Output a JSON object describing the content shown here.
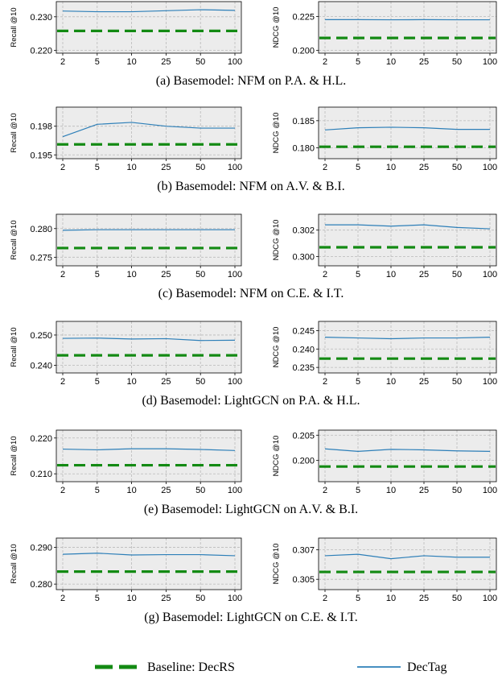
{
  "chart_data": [
    {
      "type": "line",
      "caption": "(a) Basemodel: NFM on P.A. & H.L.",
      "panels": [
        {
          "ylabel": "Recall @10",
          "yticks": [
            "0.220",
            "0.230"
          ],
          "ytick_values": [
            0.22,
            0.23
          ],
          "ylim": [
            0.2192,
            0.2345
          ],
          "categories": [
            "2",
            "5",
            "10",
            "25",
            "50",
            "100"
          ],
          "series": [
            {
              "name": "DecTag",
              "values": [
                0.2317,
                0.2315,
                0.2315,
                0.2318,
                0.2321,
                0.2319
              ]
            },
            {
              "name": "Baseline: DecRS",
              "values": [
                0.2258,
                0.2258,
                0.2258,
                0.2258,
                0.2258,
                0.2258
              ]
            }
          ]
        },
        {
          "ylabel": "NDCG @10",
          "yticks": [
            "0.200",
            "0.225"
          ],
          "ytick_values": [
            0.2,
            0.225
          ],
          "ylim": [
            0.198,
            0.236
          ],
          "categories": [
            "2",
            "5",
            "10",
            "25",
            "50",
            "100"
          ],
          "series": [
            {
              "name": "DecTag",
              "values": [
                0.2227,
                0.2227,
                0.2226,
                0.2227,
                0.2226,
                0.2226
              ]
            },
            {
              "name": "Baseline: DecRS",
              "values": [
                0.2092,
                0.2092,
                0.2092,
                0.2092,
                0.2092,
                0.2092
              ]
            }
          ]
        }
      ]
    },
    {
      "type": "line",
      "caption": "(b) Basemodel: NFM on A.V. & B.I.",
      "panels": [
        {
          "ylabel": "Recall @10",
          "yticks": [
            "0.195",
            "0.198"
          ],
          "ytick_values": [
            0.195,
            0.198
          ],
          "ylim": [
            0.1946,
            0.2
          ],
          "categories": [
            "2",
            "5",
            "10",
            "25",
            "50",
            "100"
          ],
          "series": [
            {
              "name": "DecTag",
              "values": [
                0.1969,
                0.1982,
                0.1984,
                0.198,
                0.1978,
                0.1978
              ]
            },
            {
              "name": "Baseline: DecRS",
              "values": [
                0.1961,
                0.1961,
                0.1961,
                0.1961,
                0.1961,
                0.1961
              ]
            }
          ]
        },
        {
          "ylabel": "NDCG @10",
          "yticks": [
            "0.180",
            "0.185"
          ],
          "ytick_values": [
            0.18,
            0.185
          ],
          "ylim": [
            0.178,
            0.1875
          ],
          "categories": [
            "2",
            "5",
            "10",
            "25",
            "50",
            "100"
          ],
          "series": [
            {
              "name": "DecTag",
              "values": [
                0.1833,
                0.1837,
                0.1838,
                0.1837,
                0.1834,
                0.1834
              ]
            },
            {
              "name": "Baseline: DecRS",
              "values": [
                0.1802,
                0.1802,
                0.1802,
                0.1802,
                0.1802,
                0.1802
              ]
            }
          ]
        }
      ]
    },
    {
      "type": "line",
      "caption": "(c) Basemodel: NFM on C.E. & I.T.",
      "panels": [
        {
          "ylabel": "Recall @10",
          "yticks": [
            "0.275",
            "0.280"
          ],
          "ytick_values": [
            0.275,
            0.28
          ],
          "ylim": [
            0.2735,
            0.2825
          ],
          "categories": [
            "2",
            "5",
            "10",
            "25",
            "50",
            "100"
          ],
          "series": [
            {
              "name": "DecTag",
              "values": [
                0.2797,
                0.2798,
                0.2798,
                0.2798,
                0.2798,
                0.2798
              ]
            },
            {
              "name": "Baseline: DecRS",
              "values": [
                0.2766,
                0.2766,
                0.2766,
                0.2766,
                0.2766,
                0.2766
              ]
            }
          ]
        },
        {
          "ylabel": "NDCG @10",
          "yticks": [
            "0.300",
            "0.302"
          ],
          "ytick_values": [
            0.3,
            0.302
          ],
          "ylim": [
            0.2993,
            0.3032
          ],
          "categories": [
            "2",
            "5",
            "10",
            "25",
            "50",
            "100"
          ],
          "series": [
            {
              "name": "DecTag",
              "values": [
                0.3024,
                0.3024,
                0.3023,
                0.3024,
                0.3022,
                0.3021
              ]
            },
            {
              "name": "Baseline: DecRS",
              "values": [
                0.3007,
                0.3007,
                0.3007,
                0.3007,
                0.3007,
                0.3007
              ]
            }
          ]
        }
      ]
    },
    {
      "type": "line",
      "caption": "(d) Basemodel: LightGCN on P.A. & H.L.",
      "panels": [
        {
          "ylabel": "Recall @10",
          "yticks": [
            "0.240",
            "0.250"
          ],
          "ytick_values": [
            0.24,
            0.25
          ],
          "ylim": [
            0.2375,
            0.2545
          ],
          "categories": [
            "2",
            "5",
            "10",
            "25",
            "50",
            "100"
          ],
          "series": [
            {
              "name": "DecTag",
              "values": [
                0.2489,
                0.249,
                0.2487,
                0.2488,
                0.2482,
                0.2483
              ]
            },
            {
              "name": "Baseline: DecRS",
              "values": [
                0.2433,
                0.2433,
                0.2433,
                0.2433,
                0.2433,
                0.2433
              ]
            }
          ]
        },
        {
          "ylabel": "NDCG @10",
          "yticks": [
            "0.235",
            "0.240",
            "0.245"
          ],
          "ytick_values": [
            0.235,
            0.24,
            0.245
          ],
          "ylim": [
            0.2335,
            0.2475
          ],
          "categories": [
            "2",
            "5",
            "10",
            "25",
            "50",
            "100"
          ],
          "series": [
            {
              "name": "DecTag",
              "values": [
                0.2432,
                0.243,
                0.2428,
                0.243,
                0.243,
                0.2432
              ]
            },
            {
              "name": "Baseline: DecRS",
              "values": [
                0.2374,
                0.2374,
                0.2374,
                0.2374,
                0.2374,
                0.2374
              ]
            }
          ]
        }
      ]
    },
    {
      "type": "line",
      "caption": "(e) Basemodel: LightGCN on A.V. & B.I.",
      "panels": [
        {
          "ylabel": "Recall @10",
          "yticks": [
            "0.210",
            "0.220"
          ],
          "ytick_values": [
            0.21,
            0.22
          ],
          "ylim": [
            0.2078,
            0.2222
          ],
          "categories": [
            "2",
            "5",
            "10",
            "25",
            "50",
            "100"
          ],
          "series": [
            {
              "name": "DecTag",
              "values": [
                0.2169,
                0.2167,
                0.217,
                0.217,
                0.2168,
                0.2165
              ]
            },
            {
              "name": "Baseline: DecRS",
              "values": [
                0.2124,
                0.2124,
                0.2124,
                0.2124,
                0.2124,
                0.2124
              ]
            }
          ]
        },
        {
          "ylabel": "NDCG @10",
          "yticks": [
            "0.200",
            "0.205"
          ],
          "ytick_values": [
            0.2,
            0.205
          ],
          "ylim": [
            0.1958,
            0.206
          ],
          "categories": [
            "2",
            "5",
            "10",
            "25",
            "50",
            "100"
          ],
          "series": [
            {
              "name": "DecTag",
              "values": [
                0.2023,
                0.2018,
                0.2022,
                0.2021,
                0.2019,
                0.2018
              ]
            },
            {
              "name": "Baseline: DecRS",
              "values": [
                0.1988,
                0.1988,
                0.1988,
                0.1988,
                0.1988,
                0.1988
              ]
            }
          ]
        }
      ]
    },
    {
      "type": "line",
      "caption": "(g) Basemodel: LightGCN on C.E. & I.T.",
      "panels": [
        {
          "ylabel": "Recall @10",
          "yticks": [
            "0.280",
            "0.290"
          ],
          "ytick_values": [
            0.28,
            0.29
          ],
          "ylim": [
            0.2785,
            0.2925
          ],
          "categories": [
            "2",
            "5",
            "10",
            "25",
            "50",
            "100"
          ],
          "series": [
            {
              "name": "DecTag",
              "values": [
                0.2881,
                0.2884,
                0.2879,
                0.288,
                0.288,
                0.2877
              ]
            },
            {
              "name": "Baseline: DecRS",
              "values": [
                0.2834,
                0.2834,
                0.2834,
                0.2834,
                0.2834,
                0.2834
              ]
            }
          ]
        },
        {
          "ylabel": "NDCG @10",
          "yticks": [
            "0.305",
            "0.307"
          ],
          "ytick_values": [
            0.305,
            0.307
          ],
          "ylim": [
            0.3043,
            0.3078
          ],
          "categories": [
            "2",
            "5",
            "10",
            "25",
            "50",
            "100"
          ],
          "series": [
            {
              "name": "DecTag",
              "values": [
                0.3066,
                0.3067,
                0.3064,
                0.3066,
                0.3065,
                0.3065
              ]
            },
            {
              "name": "Baseline: DecRS",
              "values": [
                0.3055,
                0.3055,
                0.3055,
                0.3055,
                0.3055,
                0.3055
              ]
            }
          ]
        }
      ]
    }
  ],
  "legend": {
    "placement": "bottom",
    "items": [
      {
        "label": "Baseline: DecRS",
        "color": "#138a13",
        "style": "dashed"
      },
      {
        "label": "DecTag",
        "color": "#2d7fb8",
        "style": "solid"
      }
    ]
  },
  "colors": {
    "plot_background": "#ececec",
    "grid": "#b9b9b9",
    "dectag": "#2d7fb8",
    "baseline": "#138a13"
  }
}
